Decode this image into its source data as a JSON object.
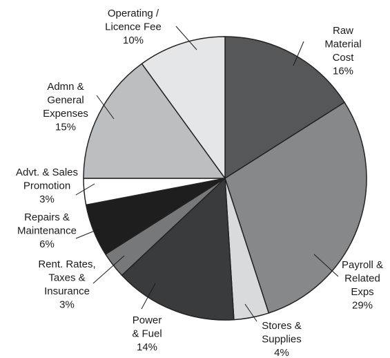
{
  "chart_data": {
    "type": "pie",
    "categories": [
      [
        "Raw",
        "Material",
        "Cost"
      ],
      [
        "Payroll &",
        "Related",
        "Exps"
      ],
      [
        "Stores &",
        "Supplies"
      ],
      [
        "Power",
        "& Fuel"
      ],
      [
        "Rent. Rates,",
        "Taxes &",
        "Insurance"
      ],
      [
        "Repairs &",
        "Maintenance"
      ],
      [
        "Advt. & Sales",
        "Promotion"
      ],
      [
        "Admn &",
        "General",
        "Expenses"
      ],
      [
        "Operating /",
        "Licence Fee"
      ]
    ],
    "values": [
      16,
      29,
      4,
      14,
      3,
      6,
      3,
      15,
      10
    ],
    "value_labels": [
      "16%",
      "29%",
      "4%",
      "14%",
      "3%",
      "6%",
      "3%",
      "15%",
      "10%"
    ],
    "colors": [
      "#555759",
      "#87888a",
      "#d9dadb",
      "#3a3b3d",
      "#77787a",
      "#1e1e1f",
      "#ffffff",
      "#bdbec0",
      "#e5e6e7"
    ]
  }
}
